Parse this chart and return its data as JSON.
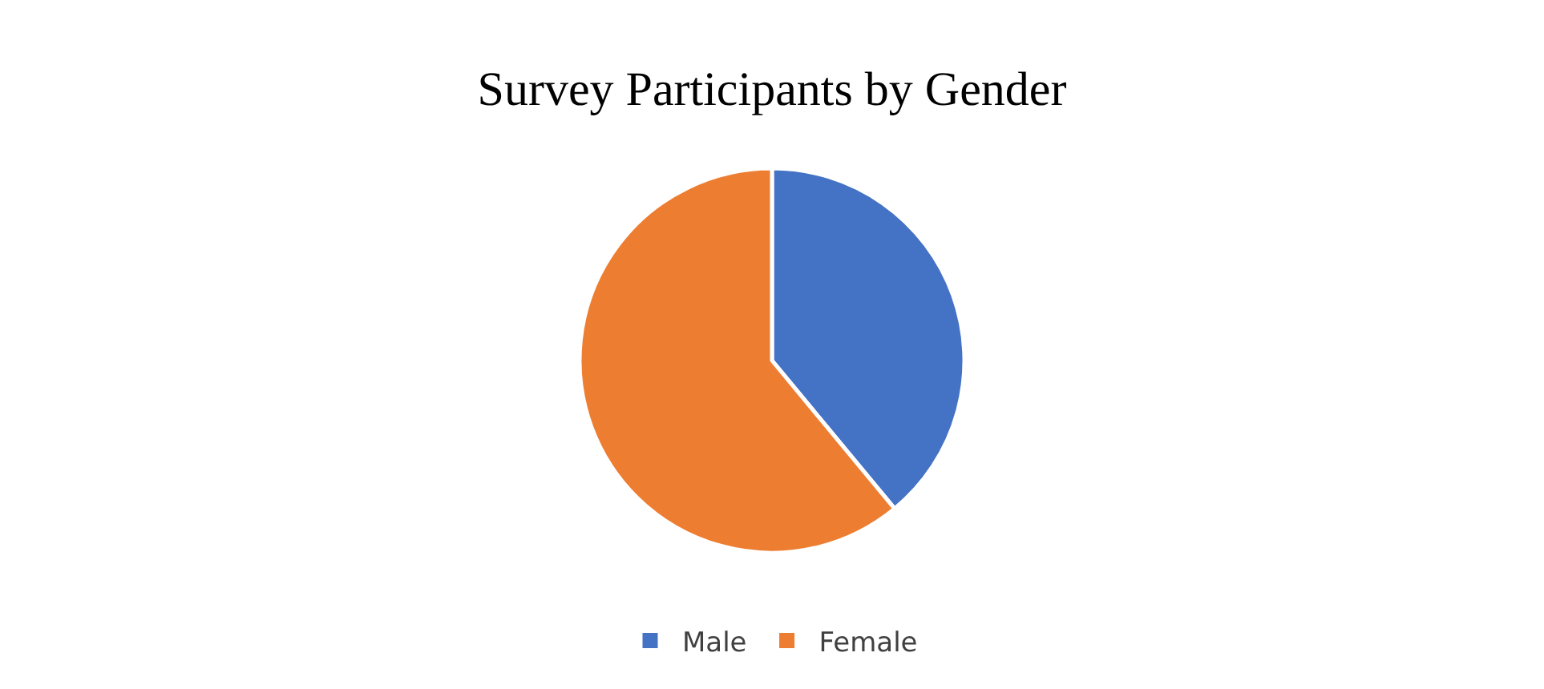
{
  "chart_data": {
    "type": "pie",
    "title": "Survey Participants by Gender",
    "categories": [
      "Male",
      "Female"
    ],
    "values": [
      39,
      61
    ],
    "colors": [
      "#4472c4",
      "#ed7d31"
    ],
    "legend": "bottom"
  }
}
